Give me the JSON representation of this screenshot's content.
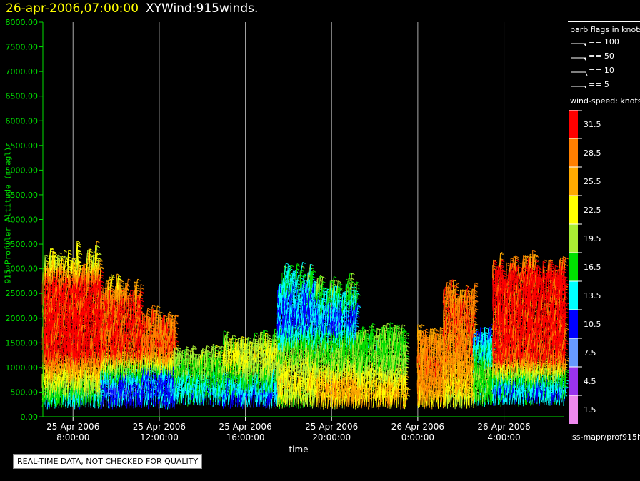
{
  "header": {
    "timestamp": "26-apr-2006,07:00:00",
    "title": "XYWind:915winds."
  },
  "footer": {
    "quality_note": "REAL-TIME DATA, NOT CHECKED FOR QUALITY",
    "source_path": "iss-mapr/prof915h"
  },
  "legend": {
    "flags_title": "barb flags in knots",
    "flags": [
      {
        "label": "== 100",
        "value": 100
      },
      {
        "label": "== 50",
        "value": 50
      },
      {
        "label": "== 10",
        "value": 10
      },
      {
        "label": "== 5",
        "value": 5
      }
    ],
    "speed_title": "wind-speed: knots",
    "scale": [
      {
        "label": "31.5",
        "color": "#ff0000"
      },
      {
        "label": "28.5",
        "color": "#ff7f00"
      },
      {
        "label": "25.5",
        "color": "#ffaa00"
      },
      {
        "label": "22.5",
        "color": "#ffff00"
      },
      {
        "label": "19.5",
        "color": "#aaee33"
      },
      {
        "label": "16.5",
        "color": "#00e000"
      },
      {
        "label": "13.5",
        "color": "#00ffff"
      },
      {
        "label": "10.5",
        "color": "#0000ff"
      },
      {
        "label": "7.5",
        "color": "#6699ff"
      },
      {
        "label": "4.5",
        "color": "#9933ee"
      },
      {
        "label": "1.5",
        "color": "#ee88ee"
      }
    ]
  },
  "colors": {
    "axis": "#00e000",
    "gridline": "#aaaaaa",
    "title_date": "#ffff00",
    "title_text": "#ffffff"
  },
  "chart_data": {
    "type": "wind-barb time-height plot",
    "title": "XYWind:915winds.",
    "xlabel": "time",
    "ylabel": "915 Profiler Altitude (m agl)",
    "ylim": [
      0,
      8000
    ],
    "y_ticks": [
      "0.00",
      "500.00",
      "1000.00",
      "1500.00",
      "2000.00",
      "2500.00",
      "3000.00",
      "3500.00",
      "4000.00",
      "4500.00",
      "5000.00",
      "5500.00",
      "6000.00",
      "6500.00",
      "7000.00",
      "7500.00",
      "8000.00"
    ],
    "x_range_hours": [
      6.6,
      30.8
    ],
    "x_ticks": [
      {
        "hours": 8,
        "date": "25-Apr-2006",
        "time": "8:00:00"
      },
      {
        "hours": 12,
        "date": "25-Apr-2006",
        "time": "12:00:00"
      },
      {
        "hours": 16,
        "date": "25-Apr-2006",
        "time": "16:00:00"
      },
      {
        "hours": 20,
        "date": "25-Apr-2006",
        "time": "20:00:00"
      },
      {
        "hours": 24,
        "date": "26-Apr-2006",
        "time": "0:00:00"
      },
      {
        "hours": 28,
        "date": "26-Apr-2006",
        "time": "4:00:00"
      }
    ],
    "grid": "vertical lines at major time ticks",
    "legend_position": "right",
    "profile_groups": [
      {
        "t_start": 6.6,
        "t_end": 9.3,
        "top": 3200,
        "bottom": 150,
        "speeds": [
          [
            0,
            10
          ],
          [
            400,
            18
          ],
          [
            900,
            26
          ],
          [
            1200,
            32
          ],
          [
            2600,
            31
          ],
          [
            3000,
            22
          ]
        ]
      },
      {
        "t_start": 9.3,
        "t_end": 11.2,
        "top": 2600,
        "bottom": 150,
        "speeds": [
          [
            0,
            12
          ],
          [
            500,
            10
          ],
          [
            900,
            20
          ],
          [
            1200,
            31
          ],
          [
            2200,
            30
          ],
          [
            2600,
            24
          ]
        ]
      },
      {
        "t_start": 11.2,
        "t_end": 12.7,
        "top": 2000,
        "bottom": 150,
        "speeds": [
          [
            0,
            12
          ],
          [
            700,
            11
          ],
          [
            1000,
            24
          ],
          [
            1300,
            30
          ],
          [
            2000,
            28
          ]
        ]
      },
      {
        "t_start": 12.7,
        "t_end": 15.0,
        "top": 1200,
        "bottom": 200,
        "speeds": [
          [
            0,
            12
          ],
          [
            500,
            14
          ],
          [
            800,
            17
          ],
          [
            1200,
            20
          ]
        ]
      },
      {
        "t_start": 15.0,
        "t_end": 17.5,
        "top": 1500,
        "bottom": 150,
        "speeds": [
          [
            0,
            9
          ],
          [
            500,
            14
          ],
          [
            900,
            20
          ],
          [
            1200,
            22
          ],
          [
            1500,
            18
          ]
        ]
      },
      {
        "t_start": 17.5,
        "t_end": 19.3,
        "top": 2800,
        "bottom": 150,
        "speeds": [
          [
            0,
            18
          ],
          [
            600,
            23
          ],
          [
            1200,
            18
          ],
          [
            1800,
            11
          ],
          [
            2400,
            13
          ],
          [
            2800,
            16
          ]
        ]
      },
      {
        "t_start": 19.3,
        "t_end": 21.2,
        "top": 2600,
        "bottom": 150,
        "speeds": [
          [
            0,
            22
          ],
          [
            500,
            26
          ],
          [
            900,
            20
          ],
          [
            1300,
            17
          ],
          [
            1800,
            11
          ],
          [
            2300,
            15
          ],
          [
            2600,
            19
          ]
        ]
      },
      {
        "t_start": 21.2,
        "t_end": 23.5,
        "top": 1600,
        "bottom": 150,
        "speeds": [
          [
            0,
            26
          ],
          [
            500,
            24
          ],
          [
            900,
            19
          ],
          [
            1300,
            17
          ],
          [
            1600,
            18
          ]
        ]
      },
      {
        "t_start": 24.0,
        "t_end": 25.2,
        "top": 1600,
        "bottom": 150,
        "speeds": [
          [
            0,
            22
          ],
          [
            500,
            27
          ],
          [
            1000,
            28
          ],
          [
            1600,
            27
          ]
        ]
      },
      {
        "t_start": 25.2,
        "t_end": 26.6,
        "top": 2500,
        "bottom": 150,
        "speeds": [
          [
            0,
            20
          ],
          [
            500,
            24
          ],
          [
            1200,
            28
          ],
          [
            2000,
            29
          ],
          [
            2500,
            28
          ]
        ]
      },
      {
        "t_start": 26.6,
        "t_end": 27.5,
        "top": 1600,
        "bottom": 200,
        "speeds": [
          [
            0,
            16
          ],
          [
            800,
            18
          ],
          [
            1200,
            14
          ],
          [
            1600,
            12
          ]
        ]
      },
      {
        "t_start": 27.5,
        "t_end": 30.8,
        "top": 3000,
        "bottom": 200,
        "speeds": [
          [
            0,
            14
          ],
          [
            500,
            13
          ],
          [
            800,
            21
          ],
          [
            1100,
            31
          ],
          [
            2800,
            32
          ],
          [
            3000,
            27
          ]
        ]
      }
    ]
  }
}
